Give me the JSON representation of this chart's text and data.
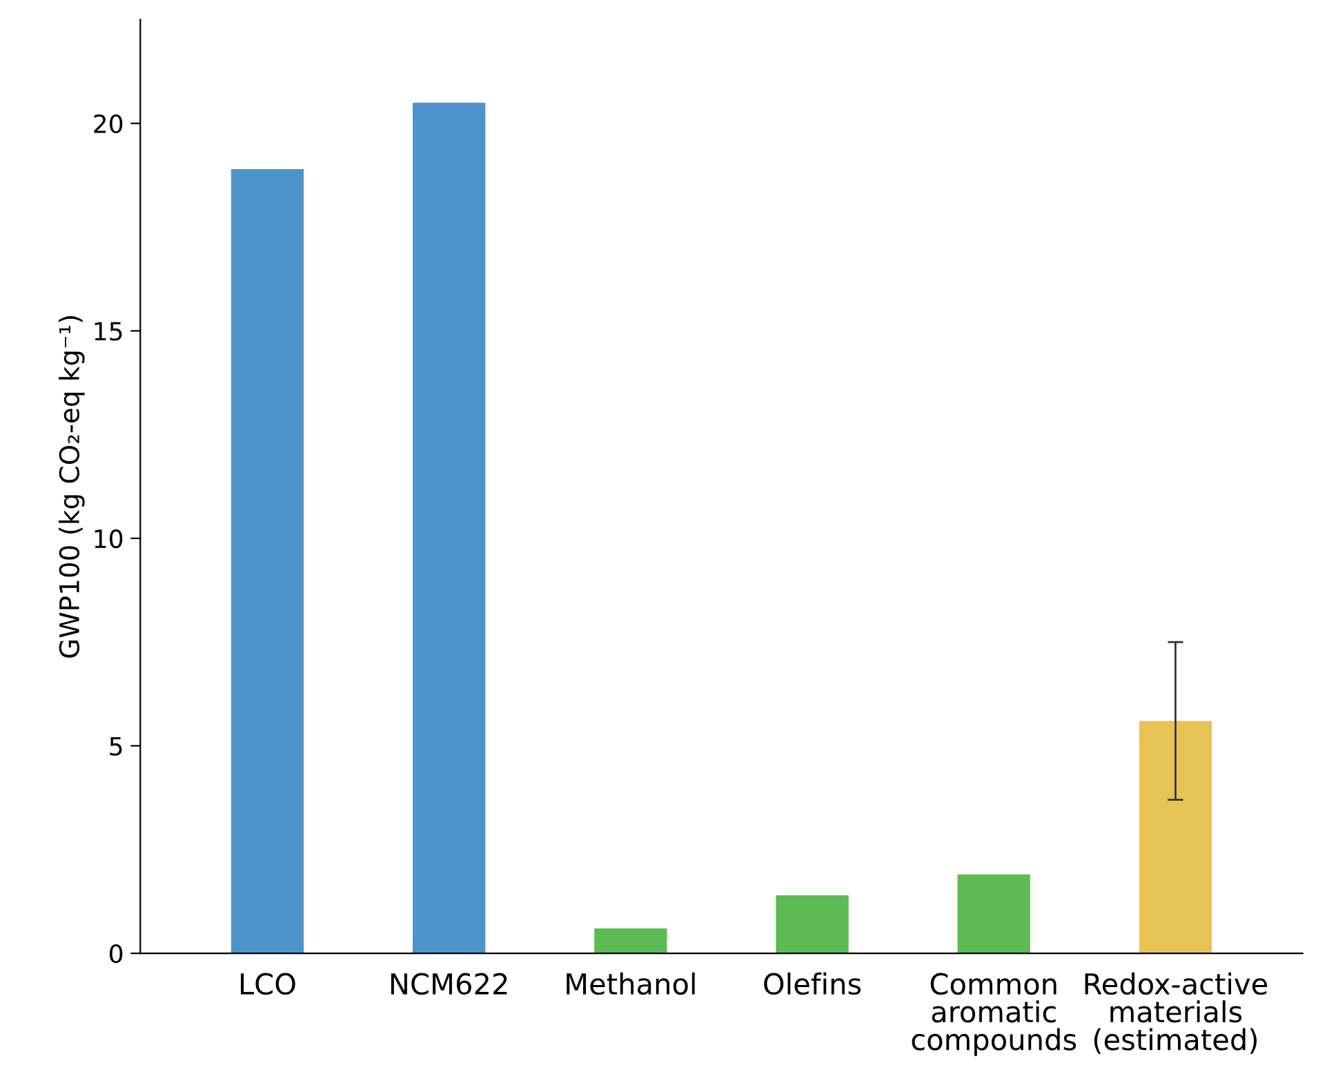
{
  "chart_data": {
    "type": "bar",
    "ylabel": "GWP100 (kg CO₂-eq kg⁻¹)",
    "categories": [
      "LCO",
      "NCM622",
      "Methanol",
      "Olefins",
      "Common\naromatic\ncompounds",
      "Redox-active\nmaterials\n(estimated)"
    ],
    "values": [
      18.9,
      20.5,
      0.6,
      1.4,
      1.9,
      5.6
    ],
    "colors": [
      "#4d94cb",
      "#4d94cb",
      "#5cbb55",
      "#5cbb55",
      "#5cbb55",
      "#e8c355"
    ],
    "errors": [
      null,
      null,
      null,
      null,
      null,
      [
        3.7,
        7.5
      ]
    ],
    "ylim": [
      0,
      22.5
    ],
    "yticks": [
      0,
      5,
      10,
      15,
      20
    ],
    "grid": false
  }
}
